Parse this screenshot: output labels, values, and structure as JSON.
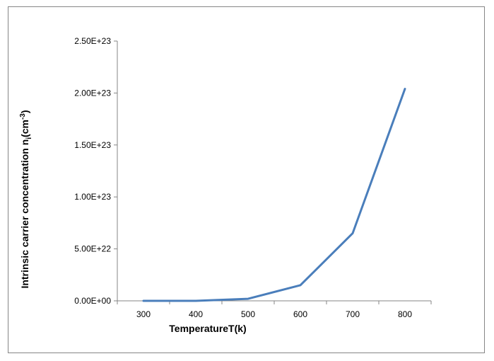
{
  "chart_data": {
    "type": "line",
    "title": "",
    "xlabel": "TemperatureT(k)",
    "ylabel": {
      "main": "Intrinsic carrier concentration n",
      "sub": "i",
      "open": "(cm",
      "sup": "-3",
      "close": ")"
    },
    "categories": [
      "300",
      "400",
      "500",
      "600",
      "700",
      "800"
    ],
    "x": [
      300,
      400,
      500,
      600,
      700,
      800
    ],
    "series": [
      {
        "values": [
          0,
          0,
          2e+21,
          1.5e+22,
          6.5e+22,
          2.04e+23
        ]
      }
    ],
    "ylim": [
      0,
      2.5e+23
    ],
    "y_ticks": [
      0,
      5e+22,
      1e+23,
      1.5e+23,
      2e+23,
      2.5e+23
    ],
    "y_tick_labels": [
      "0.00E+00",
      "5.00E+22",
      "1.00E+23",
      "1.50E+23",
      "2.00E+23",
      "2.50E+23"
    ],
    "grid": false,
    "legend": "none",
    "line_color": "#4a7ebb",
    "axis_color": "#868686"
  }
}
